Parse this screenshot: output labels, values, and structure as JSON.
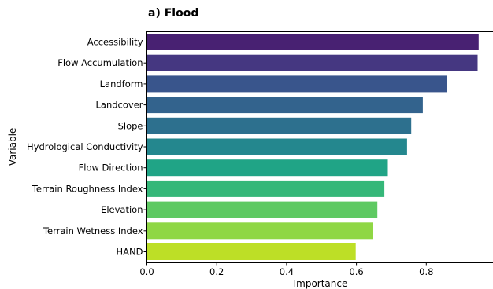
{
  "chart_data": {
    "type": "bar",
    "orientation": "horizontal",
    "title": "a) Flood",
    "xlabel": "Importance",
    "ylabel": "Variable",
    "xlim": [
      0,
      0.99
    ],
    "xticks": [
      "0.0",
      "0.2",
      "0.4",
      "0.6",
      "0.8"
    ],
    "grid": false,
    "categories": [
      "Accessibility",
      "Flow Accumulation",
      "Landform",
      "Landcover",
      "Slope",
      "Hydrological Conductivity",
      "Flow Direction",
      "Terrain Roughness Index",
      "Elevation",
      "Terrain Wetness Index",
      "HAND"
    ],
    "values": [
      0.95,
      0.947,
      0.86,
      0.79,
      0.757,
      0.745,
      0.69,
      0.68,
      0.66,
      0.648,
      0.598
    ],
    "colors": [
      "#482172",
      "#453781",
      "#39558c",
      "#33638d",
      "#2d708e",
      "#24878e",
      "#20a486",
      "#35b779",
      "#5ec962",
      "#8fd744",
      "#bddf26"
    ]
  }
}
